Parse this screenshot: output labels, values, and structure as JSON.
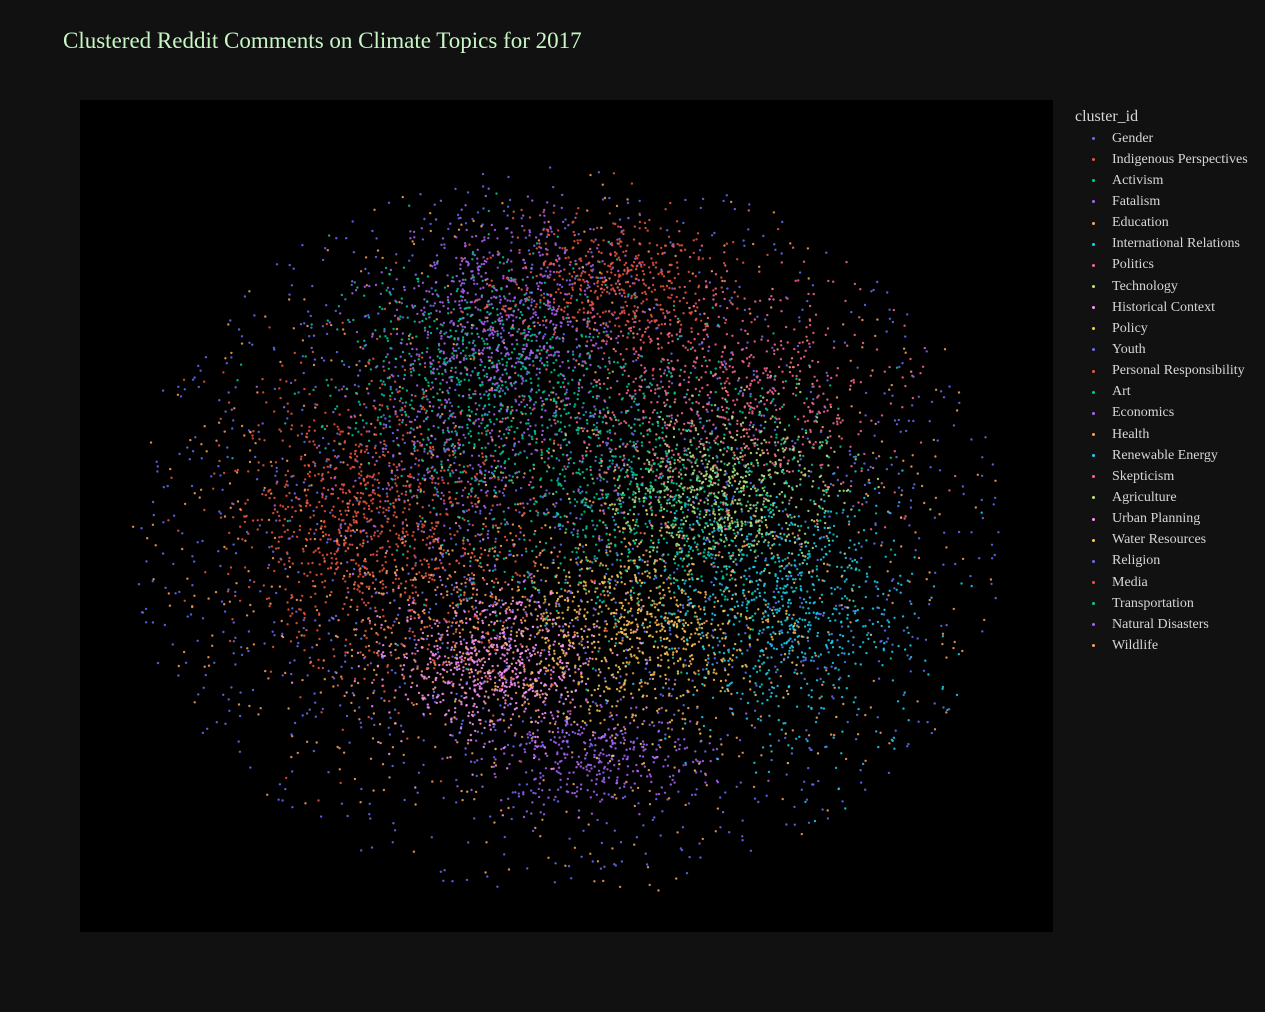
{
  "title": "Clustered Reddit Comments on Climate Topics for 2017",
  "legend_title": "cluster_id",
  "chart_data": {
    "type": "scatter",
    "title": "Clustered Reddit Comments on Climate Topics for 2017",
    "xlabel": "",
    "ylabel": "",
    "legend": "right",
    "grid": false,
    "axes_visible": false,
    "background": "#000000",
    "paper_background": "#111111",
    "series": [
      {
        "name": "Gender",
        "color": "#636efa"
      },
      {
        "name": "Indigenous Perspectives",
        "color": "#EF553B"
      },
      {
        "name": "Activism",
        "color": "#00cc96"
      },
      {
        "name": "Fatalism",
        "color": "#ab63fa"
      },
      {
        "name": "Education",
        "color": "#FFA15A"
      },
      {
        "name": "International Relations",
        "color": "#19d3f3"
      },
      {
        "name": "Politics",
        "color": "#FF6692"
      },
      {
        "name": "Technology",
        "color": "#B6E880"
      },
      {
        "name": "Historical Context",
        "color": "#FF97FF"
      },
      {
        "name": "Policy",
        "color": "#FECB52"
      },
      {
        "name": "Youth",
        "color": "#636efa"
      },
      {
        "name": "Personal Responsibility",
        "color": "#EF553B"
      },
      {
        "name": "Art",
        "color": "#00cc96"
      },
      {
        "name": "Economics",
        "color": "#ab63fa"
      },
      {
        "name": "Health",
        "color": "#FFA15A"
      },
      {
        "name": "Renewable Energy",
        "color": "#19d3f3"
      },
      {
        "name": "Skepticism",
        "color": "#FF6692"
      },
      {
        "name": "Agriculture",
        "color": "#B6E880"
      },
      {
        "name": "Urban Planning",
        "color": "#FF97FF"
      },
      {
        "name": "Water Resources",
        "color": "#FECB52"
      },
      {
        "name": "Religion",
        "color": "#636efa"
      },
      {
        "name": "Media",
        "color": "#EF553B"
      },
      {
        "name": "Transportation",
        "color": "#00cc96"
      },
      {
        "name": "Natural Disasters",
        "color": "#ab63fa"
      },
      {
        "name": "Wildlife",
        "color": "#FFA15A"
      }
    ],
    "cluster_centers": [
      {
        "series": 0,
        "cx": 0.5,
        "cy": 0.51,
        "sx": 0.34,
        "sy": 0.28,
        "n": 700
      },
      {
        "series": 1,
        "cx": 0.28,
        "cy": 0.49,
        "sx": 0.07,
        "sy": 0.08,
        "n": 700
      },
      {
        "series": 2,
        "cx": 0.4,
        "cy": 0.32,
        "sx": 0.07,
        "sy": 0.07,
        "n": 650
      },
      {
        "series": 3,
        "cx": 0.44,
        "cy": 0.25,
        "sx": 0.06,
        "sy": 0.06,
        "n": 550
      },
      {
        "series": 4,
        "cx": 0.42,
        "cy": 0.63,
        "sx": 0.1,
        "sy": 0.07,
        "n": 500
      },
      {
        "series": 5,
        "cx": 0.74,
        "cy": 0.63,
        "sx": 0.07,
        "sy": 0.08,
        "n": 450
      },
      {
        "series": 6,
        "cx": 0.67,
        "cy": 0.35,
        "sx": 0.09,
        "sy": 0.08,
        "n": 450
      },
      {
        "series": 7,
        "cx": 0.66,
        "cy": 0.47,
        "sx": 0.06,
        "sy": 0.05,
        "n": 350
      },
      {
        "series": 8,
        "cx": 0.42,
        "cy": 0.68,
        "sx": 0.06,
        "sy": 0.05,
        "n": 350
      },
      {
        "series": 9,
        "cx": 0.57,
        "cy": 0.64,
        "sx": 0.07,
        "sy": 0.06,
        "n": 400
      },
      {
        "series": 10,
        "cx": 0.5,
        "cy": 0.52,
        "sx": 0.4,
        "sy": 0.34,
        "n": 500
      },
      {
        "series": 11,
        "cx": 0.55,
        "cy": 0.22,
        "sx": 0.06,
        "sy": 0.04,
        "n": 500
      },
      {
        "series": 12,
        "cx": 0.58,
        "cy": 0.5,
        "sx": 0.1,
        "sy": 0.08,
        "n": 550
      },
      {
        "series": 13,
        "cx": 0.52,
        "cy": 0.79,
        "sx": 0.06,
        "sy": 0.03,
        "n": 350
      },
      {
        "series": 14,
        "cx": 0.5,
        "cy": 0.51,
        "sx": 0.36,
        "sy": 0.3,
        "n": 450
      },
      {
        "series": 15,
        "cx": 0.7,
        "cy": 0.58,
        "sx": 0.06,
        "sy": 0.06,
        "n": 300
      },
      {
        "series": 16,
        "cx": 0.62,
        "cy": 0.37,
        "sx": 0.1,
        "sy": 0.08,
        "n": 350
      },
      {
        "series": 17,
        "cx": 0.66,
        "cy": 0.47,
        "sx": 0.05,
        "sy": 0.04,
        "n": 300
      },
      {
        "series": 18,
        "cx": 0.44,
        "cy": 0.68,
        "sx": 0.05,
        "sy": 0.04,
        "n": 300
      },
      {
        "series": 19,
        "cx": 0.58,
        "cy": 0.63,
        "sx": 0.07,
        "sy": 0.06,
        "n": 300
      },
      {
        "series": 20,
        "cx": 0.5,
        "cy": 0.5,
        "sx": 0.3,
        "sy": 0.3,
        "n": 350
      },
      {
        "series": 21,
        "cx": 0.34,
        "cy": 0.55,
        "sx": 0.08,
        "sy": 0.1,
        "n": 400
      },
      {
        "series": 22,
        "cx": 0.55,
        "cy": 0.43,
        "sx": 0.1,
        "sy": 0.08,
        "n": 400
      },
      {
        "series": 23,
        "cx": 0.4,
        "cy": 0.4,
        "sx": 0.08,
        "sy": 0.1,
        "n": 400
      },
      {
        "series": 24,
        "cx": 0.5,
        "cy": 0.52,
        "sx": 0.3,
        "sy": 0.28,
        "n": 300
      }
    ]
  }
}
